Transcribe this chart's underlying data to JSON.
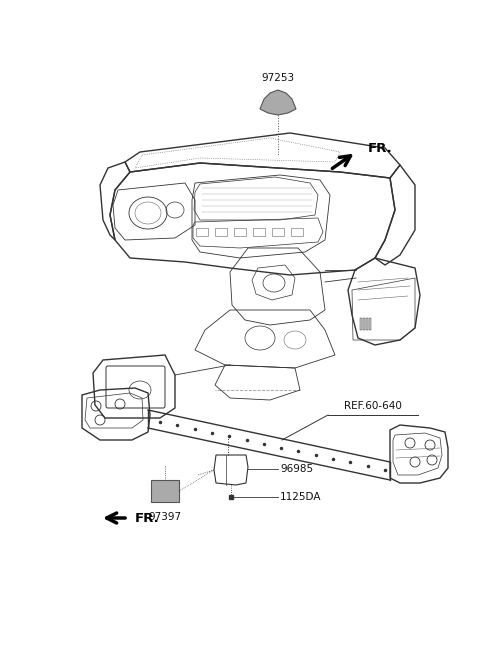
{
  "bg_color": "#ffffff",
  "line_color": "#333333",
  "text_color": "#111111",
  "figsize": [
    4.8,
    6.57
  ],
  "dpi": 100,
  "label_97253": "97253",
  "label_96985": "96985",
  "label_1125DA": "1125DA",
  "label_97397": "97397",
  "label_REF": "REF.60-640",
  "label_FR": "FR.",
  "sensor_cap_color": "#999999",
  "sensor97397_color": "#aaaaaa",
  "dash_line_color": "#444444",
  "thin_line_color": "#666666",
  "font_size_label": 7.5,
  "font_size_FR": 9.5
}
